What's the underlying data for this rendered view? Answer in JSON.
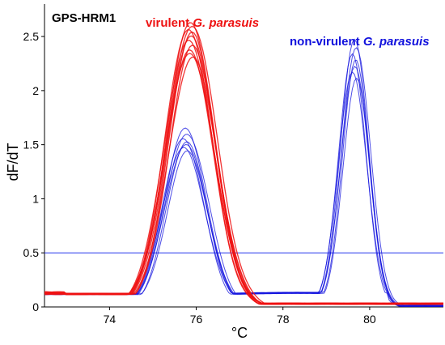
{
  "chart_data": {
    "type": "line",
    "title": "GPS-HRM1",
    "xlabel": "°C",
    "ylabel": "dF/dT",
    "xlim": [
      72.5,
      81.7
    ],
    "ylim": [
      0,
      2.8
    ],
    "x_ticks": [
      "74",
      "76",
      "78",
      "80"
    ],
    "y_ticks": [
      "0",
      "0.5",
      "1",
      "1.5",
      "2",
      "2.5"
    ],
    "threshold": {
      "y": 0.5,
      "color": "#2233ee"
    },
    "series": [
      {
        "name": "virulent G. parasuis",
        "name_parts": [
          "virulent ",
          "G. parasuis"
        ],
        "color": "#ee1111",
        "peaks": [
          {
            "center": 75.87,
            "heights": [
              2.63,
              2.6,
              2.57,
              2.54,
              2.5,
              2.46,
              2.42,
              2.38,
              2.35,
              2.31
            ],
            "width": 0.55
          }
        ],
        "baseline_start": 0.12,
        "baseline_end": 0.03
      },
      {
        "name": "non-virulent G. parasuis",
        "name_parts": [
          "non-virulent ",
          "G. parasuis"
        ],
        "color": "#1111dd",
        "peaks": [
          {
            "center": 75.75,
            "heights": [
              1.65,
              1.6,
              1.56,
              1.53,
              1.5,
              1.47,
              1.44
            ],
            "width": 0.48
          },
          {
            "center": 79.65,
            "heights": [
              2.48,
              2.4,
              2.34,
              2.28,
              2.22,
              2.17,
              2.12
            ],
            "width": 0.32
          }
        ],
        "baseline_start": 0.12,
        "baseline_end": 0.01
      }
    ],
    "grid": false,
    "legend": "none"
  }
}
